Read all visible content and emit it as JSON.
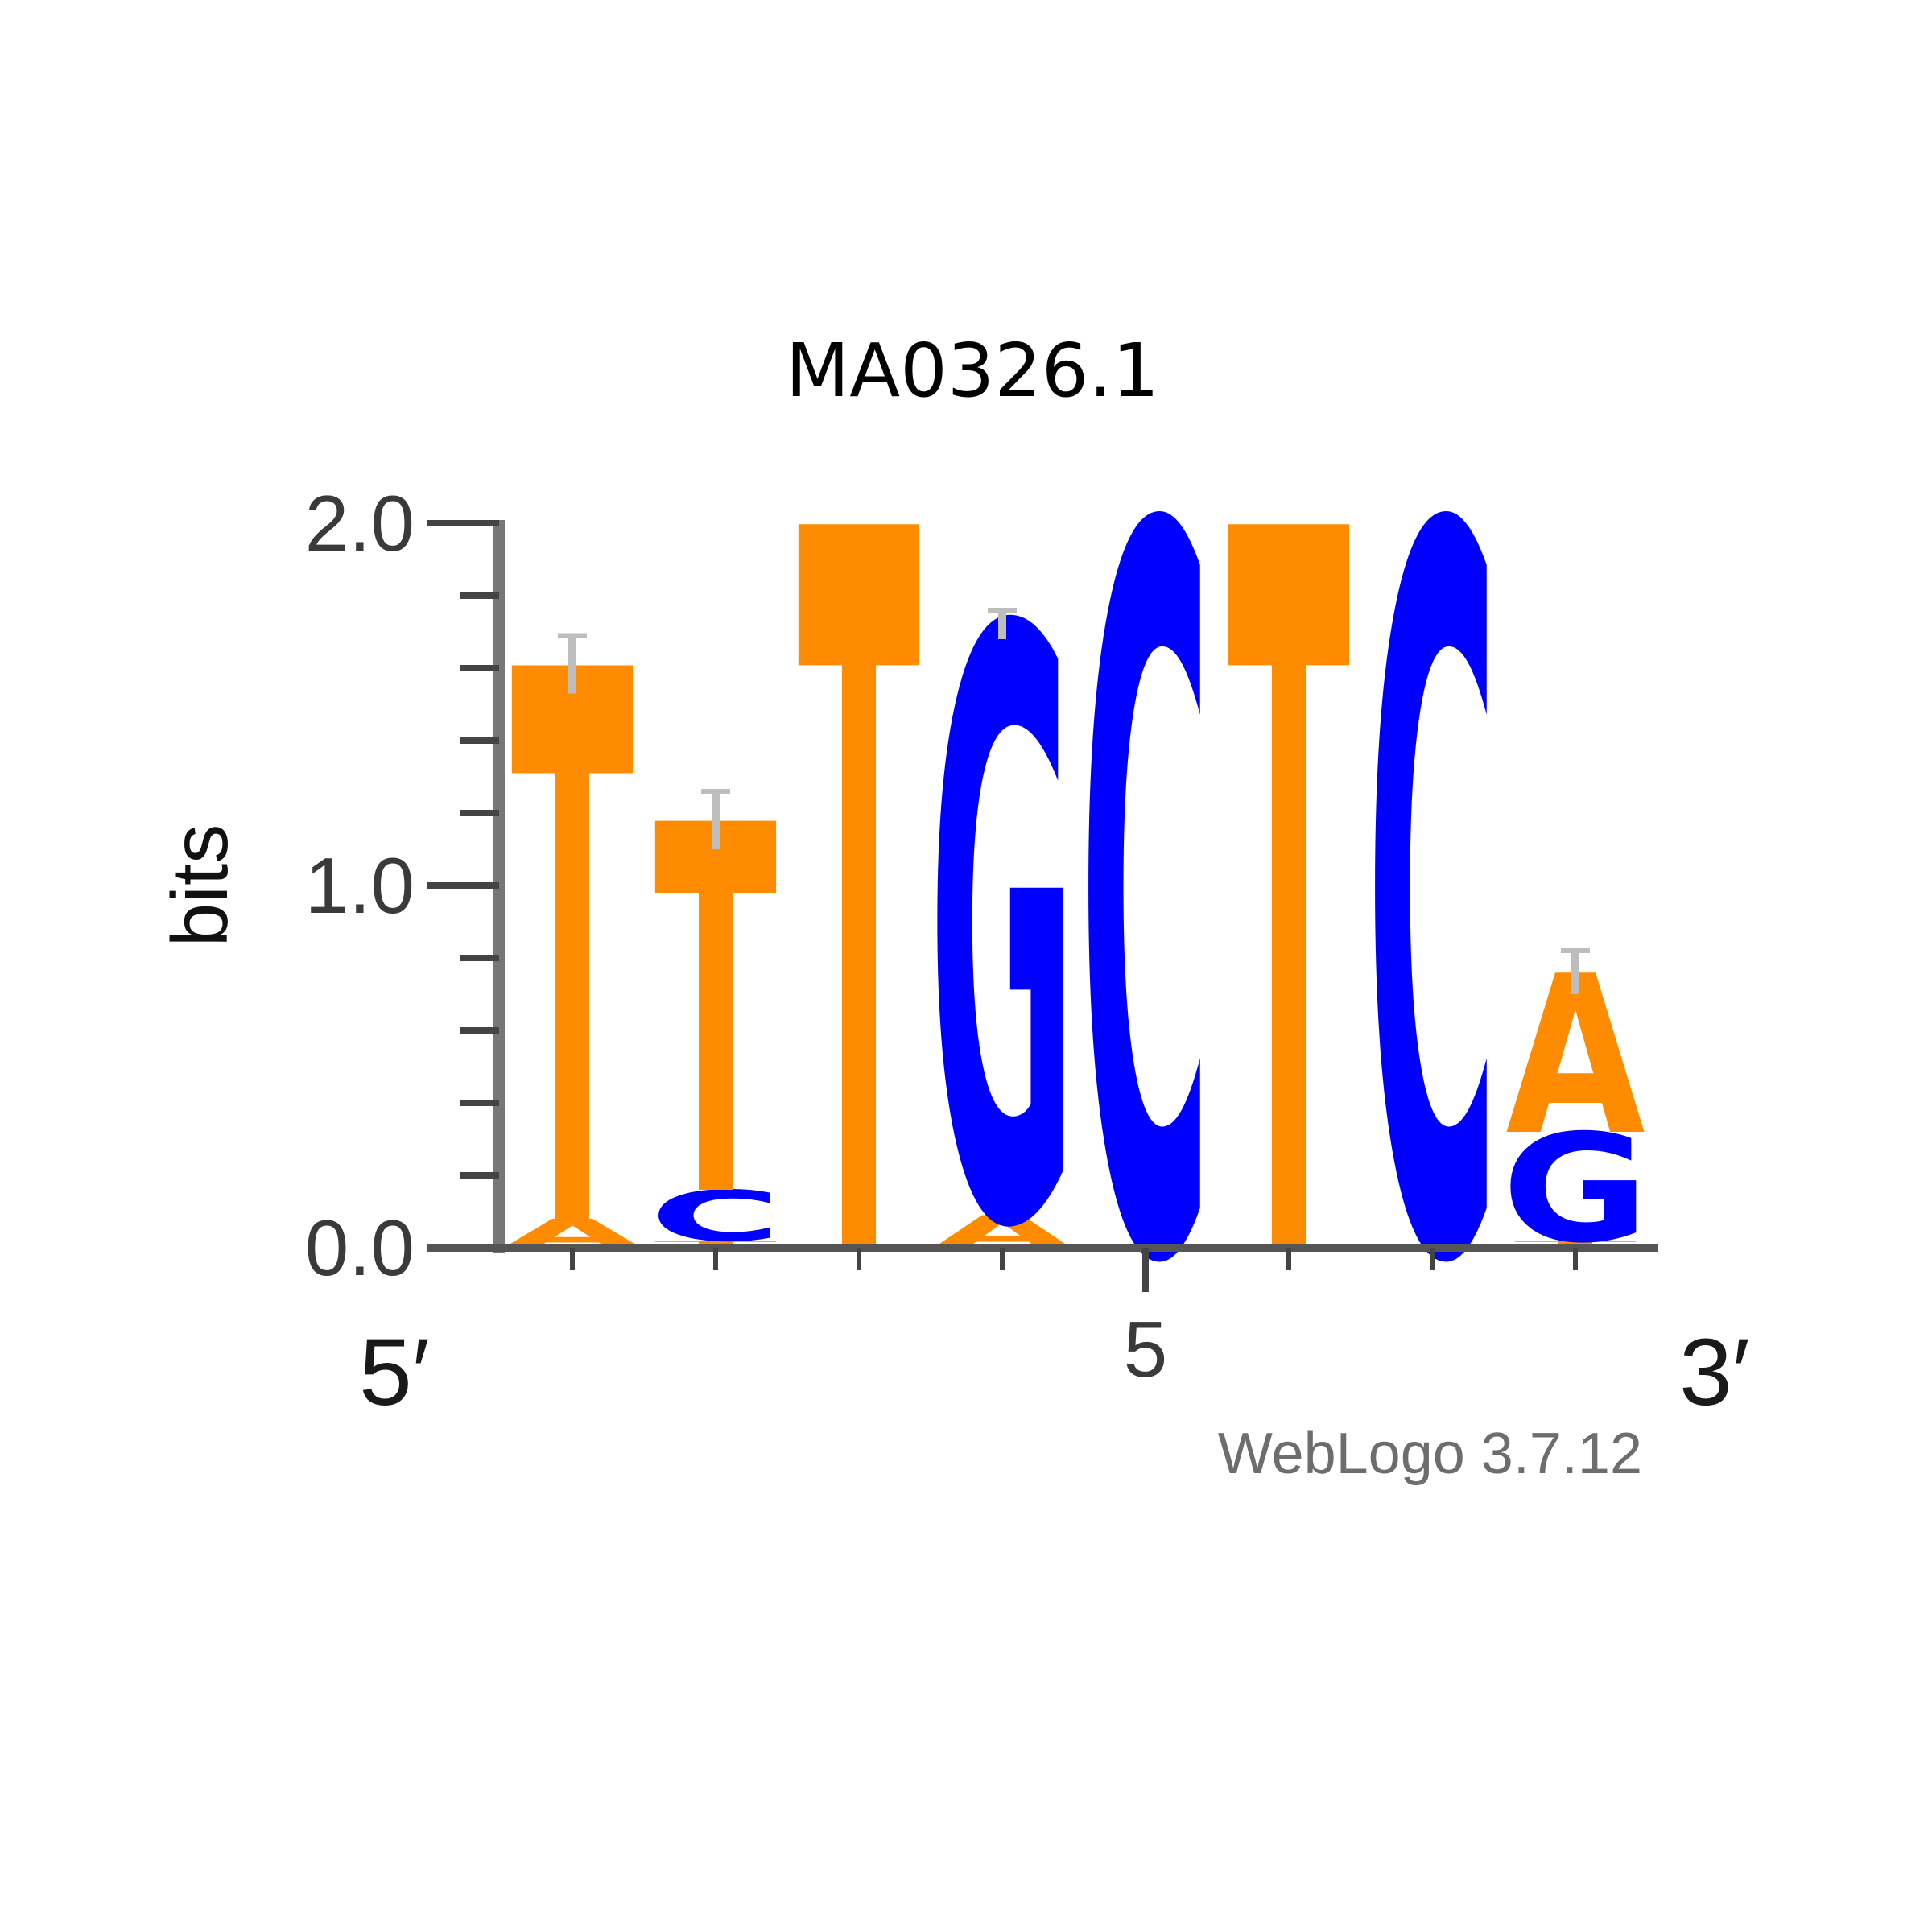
{
  "chart_data": {
    "type": "sequence-logo",
    "title": "MA0326.1",
    "ylabel": "bits",
    "ylim": [
      0,
      2
    ],
    "yticks": [
      "0.0",
      "1.0",
      "2.0"
    ],
    "xticks": [
      {
        "position": 5,
        "label": "5"
      }
    ],
    "left_end_label": "5′",
    "right_end_label": "3′",
    "colors": {
      "T": "#ff8c00",
      "A": "#ff8c00",
      "C": "#0000ff",
      "G": "#0000ff"
    },
    "positions": [
      {
        "position": 1,
        "stack": [
          {
            "letter": "A",
            "bits": 0.08
          },
          {
            "letter": "T",
            "bits": 1.53
          }
        ],
        "error": 0.08
      },
      {
        "position": 2,
        "stack": [
          {
            "letter": "T",
            "bits": 0.02
          },
          {
            "letter": "C",
            "bits": 0.14
          },
          {
            "letter": "T",
            "bits": 1.02
          }
        ],
        "error": 0.08
      },
      {
        "position": 3,
        "stack": [
          {
            "letter": "T",
            "bits": 2.0
          }
        ],
        "error": 0.0
      },
      {
        "position": 4,
        "stack": [
          {
            "letter": "A",
            "bits": 0.09
          },
          {
            "letter": "G",
            "bits": 1.63
          }
        ],
        "error": 0.04
      },
      {
        "position": 5,
        "stack": [
          {
            "letter": "C",
            "bits": 2.0
          }
        ],
        "error": 0.0
      },
      {
        "position": 6,
        "stack": [
          {
            "letter": "T",
            "bits": 2.0
          }
        ],
        "error": 0.0
      },
      {
        "position": 7,
        "stack": [
          {
            "letter": "C",
            "bits": 2.0
          }
        ],
        "error": 0.0
      },
      {
        "position": 8,
        "stack": [
          {
            "letter": "T",
            "bits": 0.02
          },
          {
            "letter": "G",
            "bits": 0.3
          },
          {
            "letter": "A",
            "bits": 0.44
          }
        ],
        "error": 0.06
      }
    ]
  },
  "footer": "WebLogo 3.7.12"
}
